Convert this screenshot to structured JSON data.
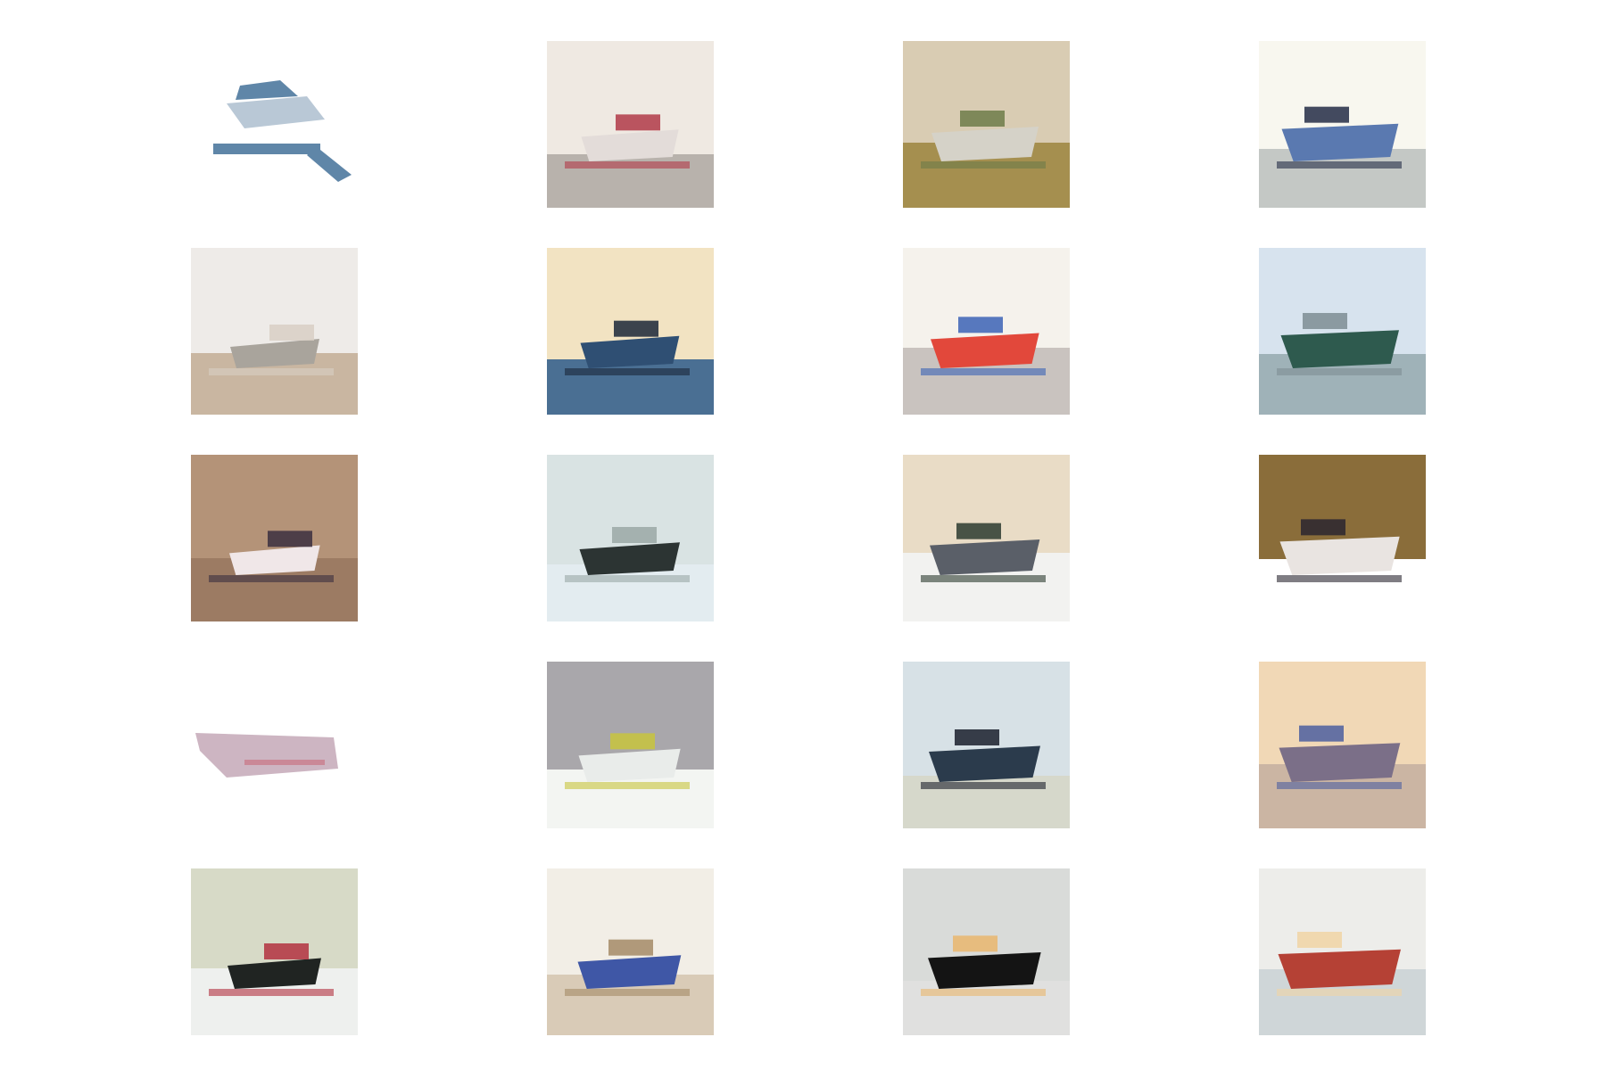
{
  "figure": {
    "rows": 5,
    "cols": 4,
    "tiles": [
      {
        "id": "r1c1",
        "subject": "white-yacht-cutout",
        "sky": "#ffffff",
        "ground": "#ffffff",
        "hull": "#5f86a8",
        "accent": "#b9c8d6"
      },
      {
        "id": "r1c2",
        "subject": "white-boat-harbor",
        "sky": "#efe9e2",
        "ground": "#b8b2ac",
        "hull": "#e3dcd9",
        "accent": "#b03a48"
      },
      {
        "id": "r1c3",
        "subject": "boat-on-shore",
        "sky": "#d9ccb3",
        "ground": "#a58f4f",
        "hull": "#d5d2c8",
        "accent": "#6d7b49"
      },
      {
        "id": "r1c4",
        "subject": "blue-ship-angled",
        "sky": "#f8f7ef",
        "ground": "#c4c8c5",
        "hull": "#5a79b0",
        "accent": "#232c45"
      },
      {
        "id": "r2c1",
        "subject": "hazy-beach-horizon",
        "sky": "#eeebe8",
        "ground": "#c9b6a1",
        "hull": "#a9a49c",
        "accent": "#d8cfc4"
      },
      {
        "id": "r2c2",
        "subject": "dark-blue-ferry",
        "sky": "#f2e3c2",
        "ground": "#4a6f93",
        "hull": "#2f4f73",
        "accent": "#1b2738"
      },
      {
        "id": "r2c3",
        "subject": "red-boat",
        "sky": "#f5f2ec",
        "ground": "#c9c3bf",
        "hull": "#e2483b",
        "accent": "#3b63b6"
      },
      {
        "id": "r2c4",
        "subject": "misty-sailboat",
        "sky": "#d7e3ee",
        "ground": "#9fb2b8",
        "hull": "#2e5a4e",
        "accent": "#7e8d93"
      },
      {
        "id": "r3c1",
        "subject": "boat-on-brown-water",
        "sky": "#b49378",
        "ground": "#9c7b63",
        "hull": "#f0e7e8",
        "accent": "#3b2f3f"
      },
      {
        "id": "r3c2",
        "subject": "dark-hull-on-ice",
        "sky": "#d9e3e3",
        "ground": "#e3ecf0",
        "hull": "#2c3433",
        "accent": "#9aa8a6"
      },
      {
        "id": "r3c3",
        "subject": "bow-in-dock",
        "sky": "#e9dcc6",
        "ground": "#f2f2f0",
        "hull": "#5a5f68",
        "accent": "#2b3b2f"
      },
      {
        "id": "r3c4",
        "subject": "boat-dark-band",
        "sky": "#8a6d3a",
        "ground": "#ffffff",
        "hull": "#e9e4e1",
        "accent": "#2a2630"
      },
      {
        "id": "r4c1",
        "subject": "pale-pink-cutout",
        "sky": "#ffffff",
        "ground": "#ffffff",
        "hull": "#cdb5c2",
        "accent": "#c86a7a"
      },
      {
        "id": "r4c2",
        "subject": "grey-wall-white-deck",
        "sky": "#a9a7ab",
        "ground": "#f3f5f2",
        "hull": "#e9ecea",
        "accent": "#c8c43c"
      },
      {
        "id": "r4c3",
        "subject": "ship-on-sea",
        "sky": "#d7e1e6",
        "ground": "#d6d8cb",
        "hull": "#2b3b4c",
        "accent": "#1a1f2b"
      },
      {
        "id": "r4c4",
        "subject": "warm-harbor-crane",
        "sky": "#f1d8b6",
        "ground": "#cbb5a3",
        "hull": "#7b6f88",
        "accent": "#4c5fa0"
      },
      {
        "id": "r5c1",
        "subject": "dark-boat-reflection",
        "sky": "#d7dac7",
        "ground": "#eef0ee",
        "hull": "#202422",
        "accent": "#b33140"
      },
      {
        "id": "r5c2",
        "subject": "blue-structures-pier",
        "sky": "#f2eee6",
        "ground": "#d9cbb7",
        "hull": "#3f57a6",
        "accent": "#a48a66"
      },
      {
        "id": "r5c3",
        "subject": "small-dark-boat",
        "sky": "#d9dbd9",
        "ground": "#e0e0df",
        "hull": "#141414",
        "accent": "#e9b66d"
      },
      {
        "id": "r5c4",
        "subject": "red-ship-small",
        "sky": "#ededea",
        "ground": "#cfd6d8",
        "hull": "#b54135",
        "accent": "#f0d3a5"
      }
    ]
  }
}
